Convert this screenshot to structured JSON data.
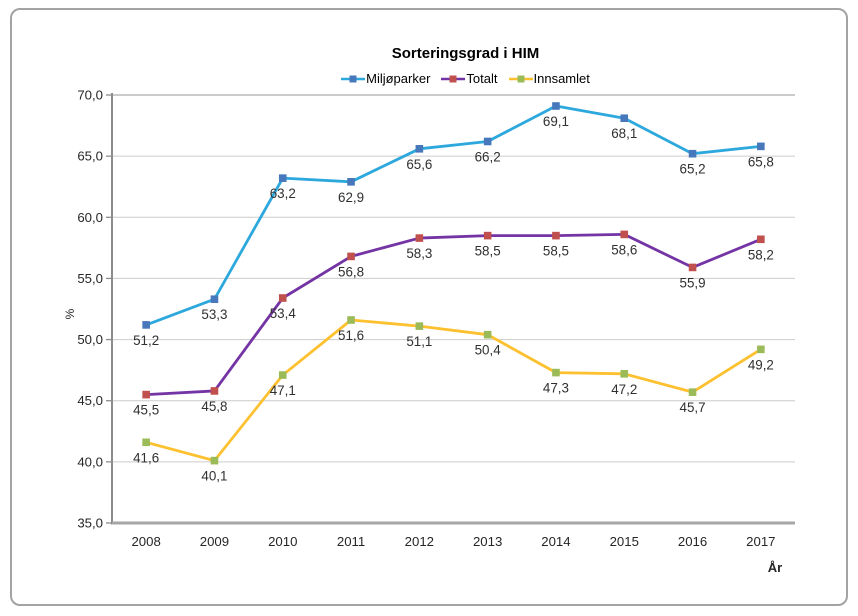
{
  "chart": {
    "title": "Sorteringsgrad i HIM",
    "y_axis_title": "%",
    "x_axis_title": "År"
  },
  "chart_data": {
    "type": "line",
    "title": "Sorteringsgrad i HIM",
    "xlabel": "År",
    "ylabel": "%",
    "categories": [
      "2008",
      "2009",
      "2010",
      "2011",
      "2012",
      "2013",
      "2014",
      "2015",
      "2016",
      "2017"
    ],
    "series": [
      {
        "name": "Miljøparker",
        "line_color": "#2da8dd",
        "marker_color": "#4678bb",
        "values": [
          51.2,
          53.3,
          63.2,
          62.9,
          65.6,
          66.2,
          69.1,
          68.1,
          65.2,
          65.8
        ],
        "data_labels": [
          "51,2",
          "53,3",
          "63,2",
          "62,9",
          "65,6",
          "66,2",
          "69,1",
          "68,1",
          "65,2",
          "65,8"
        ]
      },
      {
        "name": "Totalt",
        "line_color": "#7434a4",
        "marker_color": "#c0504d",
        "values": [
          45.5,
          45.8,
          53.4,
          56.8,
          58.3,
          58.5,
          58.5,
          58.6,
          55.9,
          58.2
        ],
        "data_labels": [
          "45,5",
          "45,8",
          "53,4",
          "56,8",
          "58,3",
          "58,5",
          "58,5",
          "58,6",
          "55,9",
          "58,2"
        ]
      },
      {
        "name": "Innsamlet",
        "line_color": "#fdc02e",
        "marker_color": "#9bbb59",
        "values": [
          41.6,
          40.1,
          47.1,
          51.6,
          51.1,
          50.4,
          47.3,
          47.2,
          45.7,
          49.2
        ],
        "data_labels": [
          "41,6",
          "40,1",
          "47,1",
          "51,6",
          "51,1",
          "50,4",
          "47,3",
          "47,2",
          "45,7",
          "49,2"
        ]
      }
    ],
    "ylim": [
      35,
      70
    ],
    "ytick_step": 5,
    "ytick_labels": [
      "35,0",
      "40,0",
      "45,0",
      "50,0",
      "55,0",
      "60,0",
      "65,0",
      "70,0"
    ],
    "grid": "horizontal",
    "legend_position": "top",
    "colors": {
      "gridline": "#cccccc",
      "plot_top_border": "#ababab",
      "y_axis_line": "#8c8c8c",
      "x_axis_line": "#a6a6a6",
      "tick_label": "#262626",
      "data_label": "#303030",
      "frame_border": "#a3a3a3"
    }
  }
}
